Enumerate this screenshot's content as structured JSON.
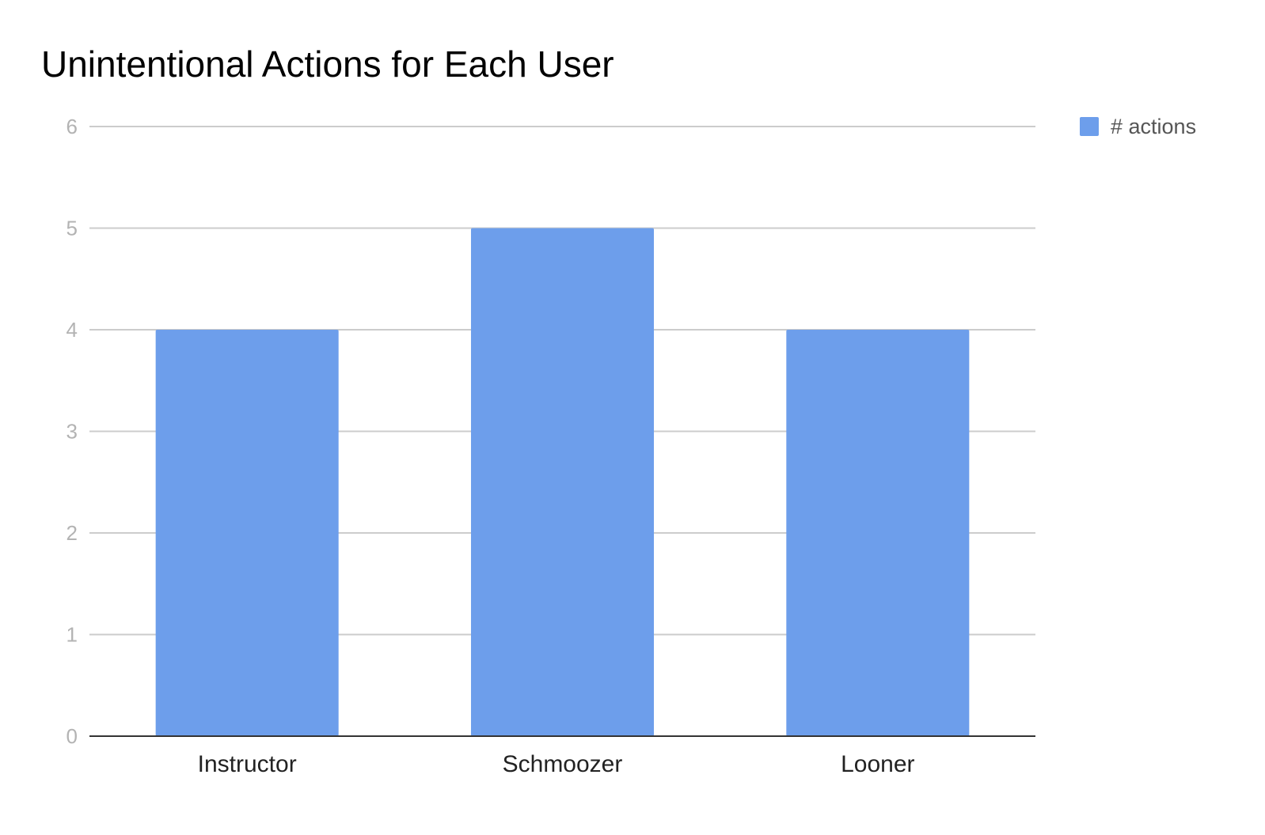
{
  "chart_data": {
    "type": "bar",
    "title": "Unintentional Actions for Each User",
    "categories": [
      "Instructor",
      "Schmoozer",
      "Looner"
    ],
    "series": [
      {
        "name": "# actions",
        "values": [
          4,
          5,
          4
        ]
      }
    ],
    "yticks": [
      "0",
      "1",
      "2",
      "3",
      "4",
      "5",
      "6"
    ],
    "ylim": [
      0,
      6
    ],
    "xlabel": "",
    "ylabel": "",
    "grid": true,
    "legend_position": "top-right",
    "colors": {
      "bar": "#6d9eeb",
      "grid": "#cccccc",
      "baseline": "#333333"
    }
  }
}
